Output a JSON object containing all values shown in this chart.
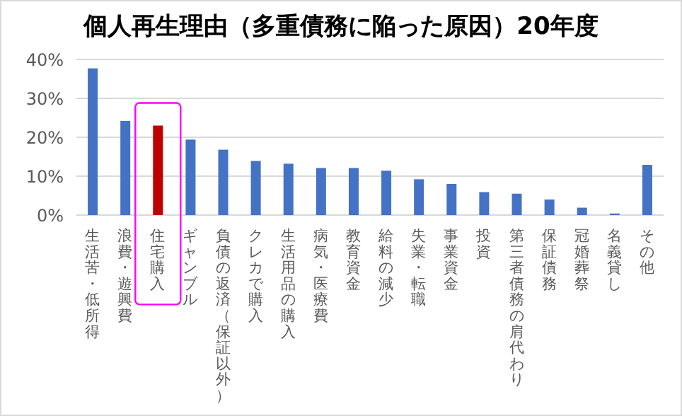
{
  "chart_data": {
    "type": "bar",
    "title": "個人再生理由（多重債務に陥った原因）20年度",
    "categories": [
      "生活苦・低所得",
      "浪費・遊興費",
      "住宅購入",
      "ギャンブル",
      "負債の返済（保証以外）",
      "クレカで購入",
      "生活用品の購入",
      "病気・医療費",
      "教育資金",
      "給料の減少",
      "失業・転職",
      "事業資金",
      "投資",
      "第三者債務の肩代わり",
      "保証債務",
      "冠婚葬祭",
      "名義貸し",
      "その他"
    ],
    "values": [
      37.7,
      24.2,
      23.0,
      19.4,
      16.8,
      13.9,
      13.2,
      12.1,
      12.1,
      11.4,
      9.2,
      8.0,
      5.9,
      5.5,
      4.0,
      1.9,
      0.4,
      12.9
    ],
    "colors": [
      "#4472c4",
      "#4472c4",
      "#c00000",
      "#4472c4",
      "#4472c4",
      "#4472c4",
      "#4472c4",
      "#4472c4",
      "#4472c4",
      "#4472c4",
      "#4472c4",
      "#4472c4",
      "#4472c4",
      "#4472c4",
      "#4472c4",
      "#4472c4",
      "#4472c4",
      "#4472c4"
    ],
    "ylim": [
      0,
      40
    ],
    "yticks": [
      {
        "value": 0,
        "label": "0%"
      },
      {
        "value": 10,
        "label": "10%"
      },
      {
        "value": 20,
        "label": "20%"
      },
      {
        "value": 30,
        "label": "30%"
      },
      {
        "value": 40,
        "label": "40%"
      }
    ],
    "grid": "y"
  }
}
